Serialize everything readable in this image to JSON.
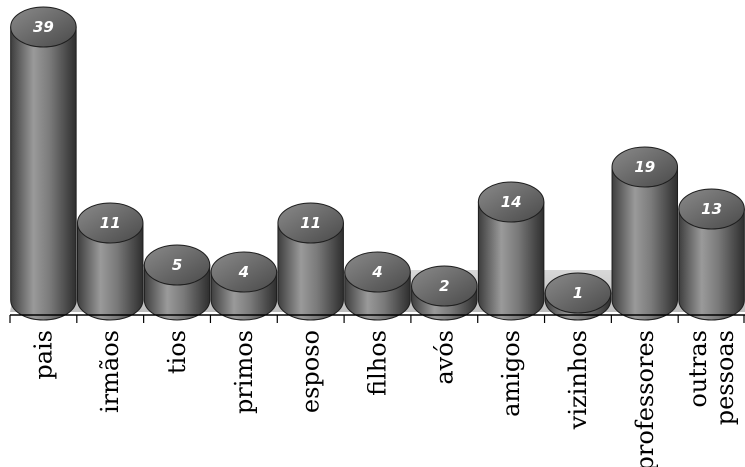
{
  "chart_data": {
    "type": "bar",
    "categories": [
      [
        "pais"
      ],
      [
        "irmãos"
      ],
      [
        "tios"
      ],
      [
        "primos"
      ],
      [
        "esposo"
      ],
      [
        "filhos"
      ],
      [
        "avós"
      ],
      [
        "amigos"
      ],
      [
        "vizinhos"
      ],
      [
        "professores"
      ],
      [
        "outras",
        "pessoas"
      ]
    ],
    "values": [
      39,
      11,
      5,
      4,
      11,
      4,
      2,
      14,
      1,
      19,
      13
    ],
    "ylim": [
      0,
      40
    ],
    "grid": false,
    "legend": "none",
    "colors": {
      "bar_dark": "#3a3a3a",
      "bar_light": "#9a9a9a",
      "bar_top": "#6e6e6e",
      "baseline": "#000000"
    }
  }
}
